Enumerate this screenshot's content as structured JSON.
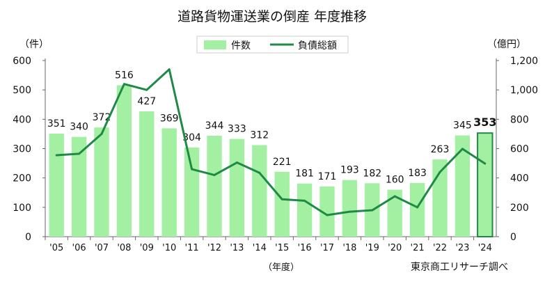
{
  "chart_data": {
    "type": "bar+line",
    "title": "道路貨物運送業の倒産 年度推移",
    "categories": [
      "'05",
      "'06",
      "'07",
      "'08",
      "'09",
      "'10",
      "'11",
      "'12",
      "'13",
      "'14",
      "'15",
      "'16",
      "'17",
      "'18",
      "'19",
      "'20",
      "'21",
      "'22",
      "'23",
      "'24"
    ],
    "series": [
      {
        "name": "件数",
        "type": "bar",
        "axis": "left",
        "color": "#a3f0a3",
        "values": [
          351,
          340,
          372,
          516,
          427,
          369,
          304,
          344,
          333,
          312,
          221,
          181,
          171,
          193,
          182,
          160,
          183,
          263,
          345,
          353
        ]
      },
      {
        "name": "負債総額",
        "type": "line",
        "axis": "right",
        "color": "#1e8a46",
        "values": [
          555,
          565,
          700,
          1040,
          1000,
          1140,
          460,
          420,
          505,
          435,
          255,
          245,
          147,
          170,
          180,
          275,
          200,
          440,
          598,
          498
        ]
      }
    ],
    "left_axis": {
      "label": "（件）",
      "range": [
        0,
        600
      ],
      "ticks": [
        "0",
        "100",
        "200",
        "300",
        "400",
        "500",
        "600"
      ]
    },
    "right_axis": {
      "label": "（億円）",
      "range": [
        0,
        1200
      ],
      "ticks": [
        "0",
        "200",
        "400",
        "600",
        "800",
        "1,000",
        "1,200"
      ]
    },
    "xlabel": "（年度）",
    "source": "東京商工リサーチ調べ",
    "highlight_last": true,
    "legend": "top-center",
    "grid": false
  }
}
